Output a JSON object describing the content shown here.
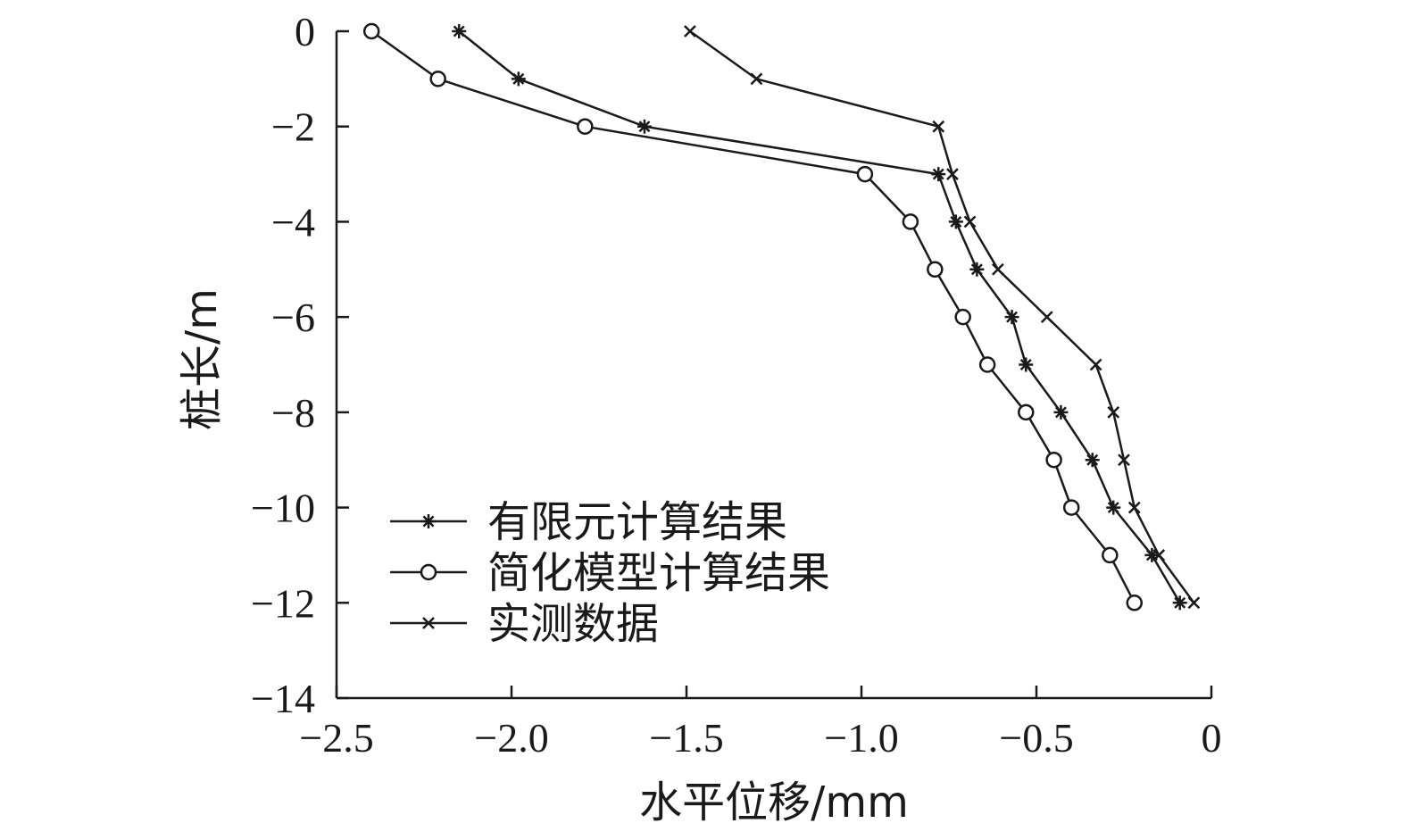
{
  "chart_data": {
    "type": "line",
    "title": "",
    "xlabel": "水平位移/mm",
    "ylabel": "桩长/m",
    "xlim": [
      -2.5,
      0
    ],
    "ylim": [
      -14,
      0
    ],
    "xticks": [
      -2.5,
      -2.0,
      -1.5,
      -1.0,
      -0.5,
      0
    ],
    "xtick_labels": [
      "−2.5",
      "−2.0",
      "−1.5",
      "−1.0",
      "−0.5",
      "0"
    ],
    "yticks": [
      0,
      -2,
      -4,
      -6,
      -8,
      -10,
      -12,
      -14
    ],
    "ytick_labels": [
      "0",
      "−2",
      "−4",
      "−6",
      "−8",
      "−10",
      "−12",
      "−14"
    ],
    "grid": false,
    "legend_position": "bottom-left",
    "series": [
      {
        "name": "有限元计算结果",
        "marker": "asterisk",
        "x": [
          -2.15,
          -1.98,
          -1.62,
          -0.78,
          -0.73,
          -0.67,
          -0.57,
          -0.53,
          -0.43,
          -0.34,
          -0.28,
          -0.17,
          -0.09
        ],
        "y": [
          0,
          -1,
          -2,
          -3,
          -4,
          -5,
          -6,
          -7,
          -8,
          -9,
          -10,
          -11,
          -12
        ]
      },
      {
        "name": "简化模型计算结果",
        "marker": "circle",
        "x": [
          -2.4,
          -2.21,
          -1.79,
          -0.99,
          -0.86,
          -0.79,
          -0.71,
          -0.64,
          -0.53,
          -0.45,
          -0.4,
          -0.29,
          -0.22
        ],
        "y": [
          0,
          -1,
          -2,
          -3,
          -4,
          -5,
          -6,
          -7,
          -8,
          -9,
          -10,
          -11,
          -12
        ]
      },
      {
        "name": "实测数据",
        "marker": "x",
        "x": [
          -1.49,
          -1.3,
          -0.78,
          -0.74,
          -0.69,
          -0.61,
          -0.47,
          -0.33,
          -0.28,
          -0.25,
          -0.22,
          -0.15,
          -0.05
        ],
        "y": [
          0,
          -1,
          -2,
          -3,
          -4,
          -5,
          -6,
          -7,
          -8,
          -9,
          -10,
          -11,
          -12
        ]
      }
    ]
  }
}
